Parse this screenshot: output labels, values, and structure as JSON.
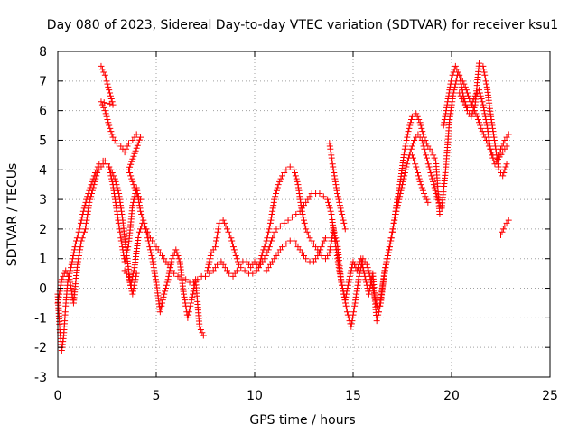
{
  "chart_data": {
    "type": "scatter",
    "title": "Day 080 of 2023, Sidereal Day-to-day VTEC variation (SDTVAR) for receiver ksu1",
    "xlabel": "GPS time / hours",
    "ylabel": "SDTVAR / TECUs",
    "xlim": [
      0,
      25
    ],
    "ylim": [
      -3,
      8
    ],
    "xticks": [
      "0",
      "5",
      "10",
      "15",
      "20",
      "25"
    ],
    "yticks": [
      "-3",
      "-2",
      "-1",
      "0",
      "1",
      "2",
      "3",
      "4",
      "5",
      "6",
      "7",
      "8"
    ],
    "grid": true,
    "marker": "+",
    "color": "#ff0000",
    "series": [
      {
        "points": [
          [
            0.0,
            -0.2
          ],
          [
            0.1,
            -1.4
          ],
          [
            0.2,
            -2.1
          ],
          [
            0.3,
            -1.6
          ],
          [
            0.4,
            -0.6
          ],
          [
            0.5,
            0.2
          ],
          [
            0.7,
            0.8
          ],
          [
            0.9,
            1.5
          ],
          [
            1.1,
            2.0
          ],
          [
            1.3,
            2.6
          ],
          [
            1.5,
            3.1
          ],
          [
            1.7,
            3.5
          ],
          [
            1.9,
            3.9
          ],
          [
            2.1,
            4.2
          ],
          [
            2.3,
            4.3
          ],
          [
            2.5,
            4.2
          ],
          [
            2.7,
            4.0
          ],
          [
            2.9,
            3.7
          ],
          [
            3.1,
            3.2
          ],
          [
            3.3,
            2.3
          ],
          [
            3.5,
            1.1
          ],
          [
            3.7,
            0.1
          ],
          [
            3.9,
            0.7
          ],
          [
            4.1,
            1.8
          ],
          [
            4.3,
            2.2
          ],
          [
            4.5,
            2.0
          ],
          [
            4.7,
            1.7
          ],
          [
            4.9,
            1.5
          ],
          [
            5.1,
            1.3
          ],
          [
            5.3,
            1.1
          ],
          [
            5.5,
            0.9
          ],
          [
            5.7,
            0.7
          ],
          [
            5.9,
            0.5
          ],
          [
            6.1,
            0.4
          ],
          [
            6.3,
            0.3
          ],
          [
            6.5,
            0.3
          ],
          [
            6.7,
            0.2
          ],
          [
            6.9,
            0.2
          ],
          [
            7.1,
            0.3
          ],
          [
            7.3,
            0.4
          ],
          [
            7.5,
            0.4
          ],
          [
            7.7,
            0.5
          ],
          [
            7.9,
            0.6
          ],
          [
            8.1,
            0.8
          ],
          [
            8.3,
            0.9
          ],
          [
            8.5,
            0.7
          ],
          [
            8.7,
            0.5
          ],
          [
            8.9,
            0.4
          ],
          [
            9.1,
            0.6
          ],
          [
            9.3,
            0.7
          ],
          [
            9.5,
            0.6
          ],
          [
            9.7,
            0.5
          ],
          [
            9.9,
            0.5
          ],
          [
            10.1,
            0.6
          ],
          [
            10.3,
            0.8
          ],
          [
            10.5,
            1.0
          ],
          [
            10.7,
            1.3
          ],
          [
            10.9,
            1.7
          ],
          [
            11.1,
            2.0
          ],
          [
            11.3,
            2.1
          ],
          [
            11.5,
            2.2
          ],
          [
            11.7,
            2.3
          ],
          [
            11.9,
            2.4
          ],
          [
            12.1,
            2.5
          ],
          [
            12.3,
            2.6
          ],
          [
            12.5,
            2.8
          ],
          [
            12.7,
            3.0
          ],
          [
            12.9,
            3.2
          ],
          [
            13.1,
            3.2
          ],
          [
            13.3,
            3.2
          ],
          [
            13.5,
            3.1
          ],
          [
            13.7,
            3.0
          ],
          [
            13.9,
            2.5
          ],
          [
            14.1,
            1.5
          ],
          [
            14.3,
            0.6
          ],
          [
            14.5,
            -0.1
          ],
          [
            14.7,
            -0.8
          ],
          [
            14.9,
            -1.3
          ],
          [
            15.1,
            -0.5
          ],
          [
            15.3,
            0.4
          ],
          [
            15.5,
            1.0
          ],
          [
            15.7,
            0.8
          ],
          [
            15.9,
            0.3
          ],
          [
            16.1,
            -0.3
          ],
          [
            16.3,
            -0.8
          ],
          [
            16.5,
            0.1
          ],
          [
            16.7,
            0.9
          ],
          [
            16.9,
            1.6
          ],
          [
            17.1,
            2.3
          ],
          [
            17.3,
            2.9
          ],
          [
            17.5,
            3.5
          ],
          [
            17.7,
            4.1
          ],
          [
            17.9,
            4.6
          ],
          [
            18.1,
            5.0
          ],
          [
            18.3,
            5.2
          ],
          [
            18.5,
            5.0
          ],
          [
            18.7,
            4.5
          ],
          [
            18.9,
            4.0
          ],
          [
            19.1,
            3.5
          ],
          [
            19.3,
            3.0
          ],
          [
            19.5,
            2.7
          ],
          [
            19.7,
            4.0
          ],
          [
            19.9,
            5.7
          ],
          [
            20.1,
            6.6
          ],
          [
            20.3,
            7.2
          ],
          [
            20.5,
            7.1
          ],
          [
            20.7,
            6.8
          ],
          [
            20.9,
            6.4
          ],
          [
            21.1,
            6.1
          ],
          [
            21.3,
            5.8
          ],
          [
            21.5,
            5.4
          ],
          [
            21.7,
            5.1
          ],
          [
            21.9,
            4.8
          ],
          [
            22.1,
            4.5
          ],
          [
            22.3,
            4.4
          ],
          [
            22.5,
            4.7
          ],
          [
            22.7,
            5.0
          ],
          [
            22.9,
            5.2
          ]
        ]
      },
      {
        "points": [
          [
            0.0,
            -0.5
          ],
          [
            0.2,
            0.3
          ],
          [
            0.4,
            0.6
          ],
          [
            0.6,
            0.3
          ],
          [
            0.8,
            -0.5
          ],
          [
            1.0,
            0.8
          ],
          [
            1.2,
            1.6
          ],
          [
            1.4,
            2.0
          ],
          [
            1.6,
            2.9
          ],
          [
            1.8,
            3.4
          ],
          [
            2.0,
            3.9
          ],
          [
            2.2,
            4.1
          ],
          [
            2.4,
            4.3
          ],
          [
            2.6,
            4.1
          ],
          [
            2.8,
            3.5
          ],
          [
            3.0,
            2.6
          ],
          [
            3.2,
            1.7
          ],
          [
            3.4,
            0.9
          ],
          [
            3.6,
            1.5
          ],
          [
            3.8,
            2.8
          ],
          [
            4.0,
            3.4
          ],
          [
            4.2,
            2.6
          ],
          [
            4.4,
            2.2
          ],
          [
            4.6,
            1.6
          ],
          [
            4.8,
            1.0
          ],
          [
            5.0,
            0.2
          ],
          [
            5.2,
            -0.8
          ],
          [
            5.4,
            -0.2
          ],
          [
            5.6,
            0.3
          ],
          [
            5.8,
            1.0
          ],
          [
            6.0,
            1.3
          ],
          [
            6.2,
            0.9
          ],
          [
            6.4,
            -0.2
          ],
          [
            6.6,
            -1.0
          ],
          [
            6.8,
            -0.4
          ],
          [
            7.0,
            0.3
          ],
          [
            7.2,
            -1.3
          ],
          [
            7.4,
            -1.6
          ],
          [
            7.6,
            0.6
          ],
          [
            7.8,
            1.2
          ],
          [
            8.0,
            1.4
          ],
          [
            8.2,
            2.2
          ],
          [
            8.4,
            2.3
          ],
          [
            8.6,
            2.0
          ],
          [
            8.8,
            1.7
          ],
          [
            9.0,
            1.2
          ],
          [
            9.2,
            0.8
          ],
          [
            9.4,
            0.9
          ],
          [
            9.6,
            0.9
          ],
          [
            9.8,
            0.7
          ],
          [
            10.0,
            0.9
          ],
          [
            10.2,
            0.7
          ],
          [
            10.4,
            1.2
          ],
          [
            10.6,
            1.6
          ],
          [
            10.8,
            2.2
          ],
          [
            11.0,
            3.0
          ],
          [
            11.2,
            3.5
          ],
          [
            11.4,
            3.8
          ],
          [
            11.6,
            4.0
          ],
          [
            11.8,
            4.1
          ],
          [
            12.0,
            4.0
          ],
          [
            12.2,
            3.5
          ],
          [
            12.4,
            2.6
          ],
          [
            12.6,
            2.0
          ],
          [
            12.8,
            1.7
          ],
          [
            13.0,
            1.5
          ],
          [
            13.2,
            1.3
          ],
          [
            13.4,
            1.1
          ],
          [
            13.6,
            1.0
          ],
          [
            13.8,
            1.2
          ],
          [
            14.0,
            2.0
          ],
          [
            14.2,
            1.5
          ],
          [
            14.4,
            0.2
          ],
          [
            14.6,
            -0.4
          ],
          [
            14.8,
            0.3
          ],
          [
            15.0,
            0.9
          ],
          [
            15.2,
            0.6
          ],
          [
            15.4,
            1.0
          ],
          [
            15.6,
            0.4
          ],
          [
            15.8,
            -0.2
          ],
          [
            16.0,
            0.5
          ],
          [
            16.2,
            -1.1
          ],
          [
            16.4,
            -0.5
          ],
          [
            16.6,
            0.6
          ],
          [
            16.8,
            1.2
          ],
          [
            17.0,
            1.9
          ],
          [
            17.2,
            2.8
          ],
          [
            17.4,
            3.6
          ],
          [
            17.6,
            4.6
          ],
          [
            17.8,
            5.3
          ],
          [
            18.0,
            5.8
          ],
          [
            18.2,
            5.9
          ],
          [
            18.4,
            5.6
          ],
          [
            18.6,
            5.1
          ],
          [
            18.8,
            4.8
          ],
          [
            19.0,
            4.6
          ],
          [
            19.2,
            4.3
          ],
          [
            19.4,
            2.5
          ],
          [
            19.6,
            5.5
          ],
          [
            19.8,
            6.3
          ],
          [
            20.0,
            7.1
          ],
          [
            20.2,
            7.5
          ],
          [
            20.4,
            7.2
          ],
          [
            20.6,
            6.5
          ],
          [
            20.8,
            6.0
          ],
          [
            21.0,
            5.8
          ],
          [
            21.2,
            6.2
          ],
          [
            21.4,
            7.6
          ],
          [
            21.6,
            7.5
          ],
          [
            21.8,
            6.8
          ],
          [
            22.0,
            5.8
          ],
          [
            22.2,
            4.9
          ],
          [
            22.4,
            4.0
          ],
          [
            22.6,
            3.8
          ],
          [
            22.8,
            4.2
          ],
          [
            22.5,
            1.8
          ],
          [
            22.7,
            2.1
          ],
          [
            22.9,
            2.3
          ]
        ]
      },
      {
        "points": [
          [
            2.2,
            7.5
          ],
          [
            2.4,
            7.2
          ],
          [
            2.6,
            6.7
          ],
          [
            2.8,
            6.2
          ],
          [
            2.2,
            6.3
          ],
          [
            2.4,
            6.0
          ],
          [
            2.6,
            5.5
          ],
          [
            2.8,
            5.1
          ],
          [
            3.0,
            4.9
          ],
          [
            3.2,
            4.8
          ],
          [
            3.4,
            4.6
          ],
          [
            3.6,
            4.9
          ],
          [
            3.8,
            5.0
          ],
          [
            4.0,
            5.2
          ],
          [
            4.2,
            5.1
          ],
          [
            3.6,
            4.0
          ],
          [
            3.8,
            3.6
          ],
          [
            4.0,
            3.2
          ],
          [
            4.2,
            3.0
          ],
          [
            3.4,
            0.6
          ],
          [
            3.6,
            0.4
          ],
          [
            3.8,
            -0.2
          ],
          [
            4.0,
            0.5
          ],
          [
            10.6,
            0.6
          ],
          [
            10.8,
            0.8
          ],
          [
            11.0,
            1.0
          ],
          [
            11.2,
            1.2
          ],
          [
            11.4,
            1.4
          ],
          [
            11.6,
            1.5
          ],
          [
            11.8,
            1.6
          ],
          [
            12.0,
            1.6
          ],
          [
            12.2,
            1.4
          ],
          [
            12.4,
            1.2
          ],
          [
            12.6,
            1.0
          ],
          [
            12.8,
            0.9
          ],
          [
            13.0,
            0.9
          ],
          [
            13.2,
            1.1
          ],
          [
            13.4,
            1.4
          ],
          [
            13.6,
            1.7
          ],
          [
            13.8,
            4.9
          ],
          [
            14.0,
            4.0
          ],
          [
            14.2,
            3.2
          ],
          [
            14.4,
            2.6
          ],
          [
            14.6,
            2.0
          ],
          [
            18.0,
            4.5
          ],
          [
            18.2,
            4.1
          ],
          [
            18.4,
            3.6
          ],
          [
            18.6,
            3.2
          ],
          [
            18.8,
            2.9
          ],
          [
            20.4,
            6.6
          ],
          [
            20.6,
            6.3
          ],
          [
            20.8,
            6.1
          ],
          [
            21.0,
            6.2
          ],
          [
            21.2,
            6.5
          ],
          [
            21.4,
            6.7
          ],
          [
            21.6,
            6.2
          ],
          [
            21.8,
            5.5
          ],
          [
            22.0,
            4.6
          ],
          [
            22.2,
            4.2
          ],
          [
            22.6,
            4.6
          ],
          [
            22.8,
            4.8
          ]
        ]
      }
    ]
  }
}
